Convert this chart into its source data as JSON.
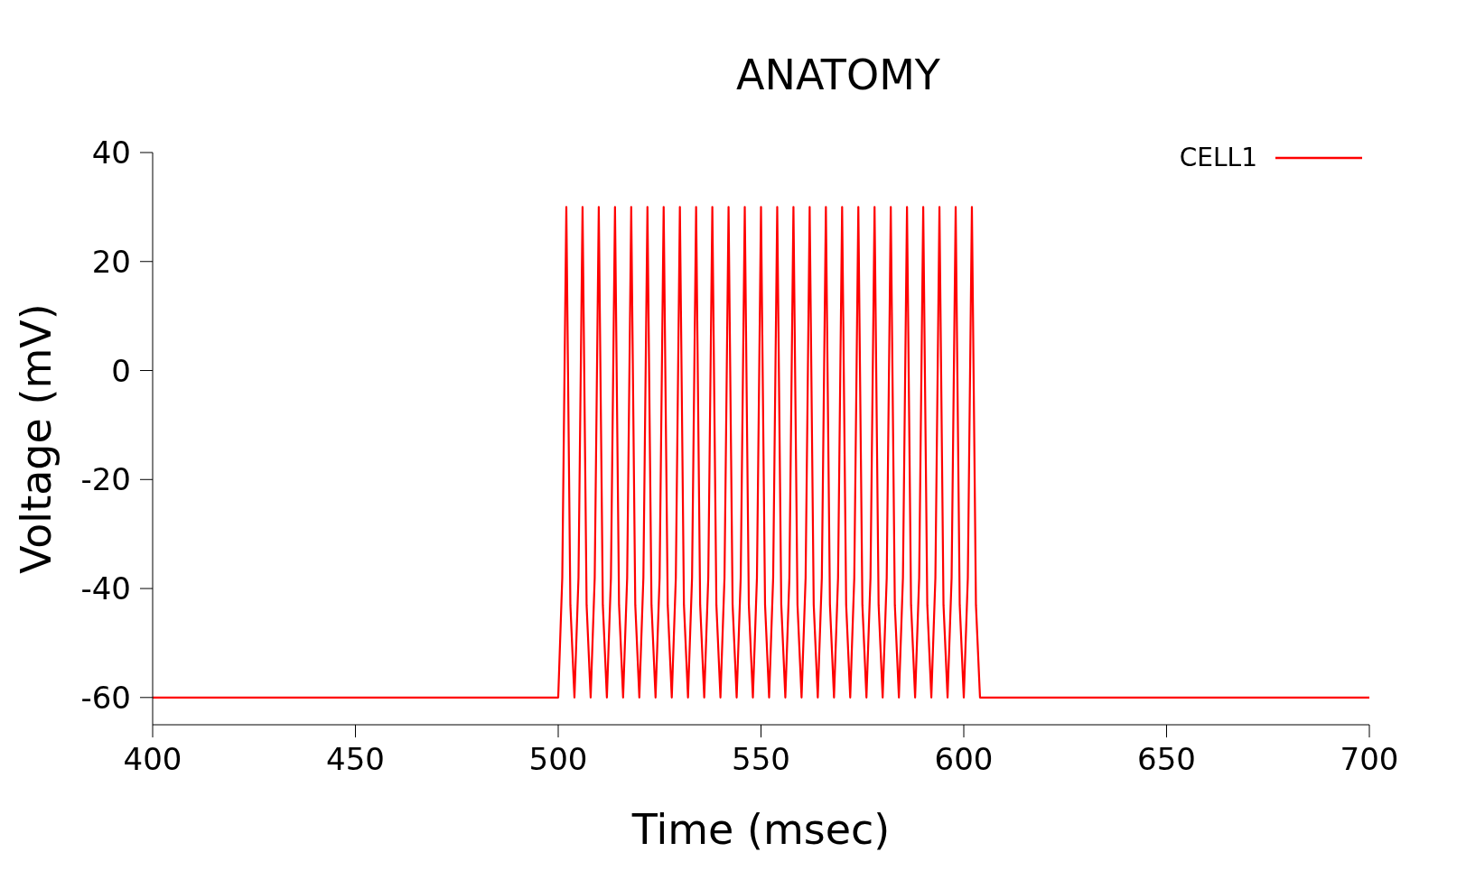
{
  "chart_data": {
    "type": "line",
    "title": "ANATOMY",
    "xlabel": "Time (msec)",
    "ylabel": "Voltage (mV)",
    "xlim": [
      400,
      700
    ],
    "xticks": [
      400,
      450,
      500,
      550,
      600,
      650,
      700
    ],
    "ylim": [
      -65,
      40
    ],
    "yticks": [
      -60,
      -40,
      -20,
      0,
      20,
      40
    ],
    "grid": false,
    "legend": "top right",
    "marker": "none",
    "line_style": "solid",
    "x": [
      400,
      500,
      501,
      502,
      503,
      504,
      505,
      506,
      507,
      508,
      509,
      510,
      511,
      512,
      513,
      514,
      515,
      516,
      517,
      518,
      519,
      520,
      521,
      522,
      523,
      524,
      525,
      526,
      527,
      528,
      529,
      530,
      531,
      532,
      533,
      534,
      535,
      536,
      537,
      538,
      539,
      540,
      541,
      542,
      543,
      544,
      545,
      546,
      547,
      548,
      549,
      550,
      551,
      552,
      553,
      554,
      555,
      556,
      557,
      558,
      559,
      560,
      561,
      562,
      563,
      564,
      565,
      566,
      567,
      568,
      569,
      570,
      571,
      572,
      573,
      574,
      575,
      576,
      577,
      578,
      579,
      580,
      581,
      582,
      583,
      584,
      585,
      586,
      587,
      588,
      589,
      590,
      591,
      592,
      593,
      594,
      595,
      596,
      597,
      598,
      599,
      600,
      601,
      602,
      603,
      604,
      700
    ],
    "series": [
      {
        "name": "CELL1",
        "color": "#ff0000",
        "values": [
          -60,
          -60,
          -38,
          30,
          -43,
          -60,
          -38,
          30,
          -43,
          -60,
          -38,
          30,
          -43,
          -60,
          -38,
          30,
          -43,
          -60,
          -38,
          30,
          -43,
          -60,
          -38,
          30,
          -43,
          -60,
          -38,
          30,
          -43,
          -60,
          -38,
          30,
          -43,
          -60,
          -38,
          30,
          -43,
          -60,
          -38,
          30,
          -43,
          -60,
          -38,
          30,
          -43,
          -60,
          -38,
          30,
          -43,
          -60,
          -38,
          30,
          -43,
          -60,
          -38,
          30,
          -43,
          -60,
          -38,
          30,
          -43,
          -60,
          -38,
          30,
          -43,
          -60,
          -38,
          30,
          -43,
          -60,
          -38,
          30,
          -43,
          -60,
          -38,
          30,
          -43,
          -60,
          -38,
          30,
          -43,
          -60,
          -38,
          30,
          -43,
          -60,
          -38,
          30,
          -43,
          -60,
          -38,
          30,
          -43,
          -60,
          -38,
          30,
          -43,
          -60,
          -38,
          30,
          -43,
          -60,
          -38,
          30,
          -43,
          -60,
          -60
        ]
      }
    ]
  }
}
